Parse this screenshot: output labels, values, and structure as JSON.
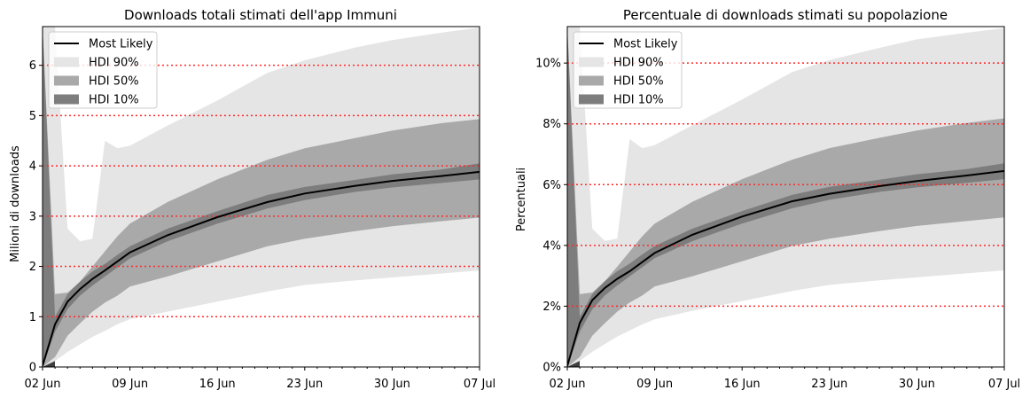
{
  "chart_data": [
    {
      "type": "area",
      "title": "Downloads totali stimati dell'app Immuni",
      "xlabel": "",
      "ylabel": "Milioni di downloads",
      "xlim": [
        "2020-06-02",
        "2020-07-07"
      ],
      "ylim": [
        0,
        6.77
      ],
      "x_ticks": [
        "02 Jun",
        "09 Jun",
        "16 Jun",
        "23 Jun",
        "30 Jun",
        "07 Jul"
      ],
      "y_ticks": [
        0,
        1,
        2,
        3,
        4,
        5,
        6
      ],
      "y_tick_labels": [
        "0",
        "1",
        "2",
        "3",
        "4",
        "5",
        "6"
      ],
      "hlines": [
        1,
        2,
        3,
        4,
        5,
        6
      ],
      "hline_color": "#ff2a2a",
      "grid": false,
      "legend": "top-left",
      "x_dates": [
        "2020-06-02",
        "2020-06-03",
        "2020-06-04",
        "2020-06-05",
        "2020-06-06",
        "2020-06-07",
        "2020-06-08",
        "2020-06-09",
        "2020-06-12",
        "2020-06-16",
        "2020-06-20",
        "2020-06-23",
        "2020-06-27",
        "2020-06-30",
        "2020-07-04",
        "2020-07-07"
      ],
      "series": [
        {
          "name": "Most Likely",
          "kind": "line",
          "color": "#000000",
          "values": [
            0.02,
            0.85,
            1.3,
            1.55,
            1.75,
            1.92,
            2.1,
            2.28,
            2.62,
            2.98,
            3.28,
            3.45,
            3.6,
            3.7,
            3.8,
            3.88
          ]
        },
        {
          "name": "HDI 90%",
          "kind": "band",
          "color": "#e5e5e5",
          "lower": [
            0,
            0.12,
            0.3,
            0.45,
            0.6,
            0.72,
            0.85,
            0.95,
            1.1,
            1.3,
            1.5,
            1.63,
            1.72,
            1.78,
            1.86,
            1.92
          ],
          "upper": [
            6.77,
            6.77,
            2.75,
            2.5,
            2.55,
            4.5,
            4.35,
            4.4,
            4.8,
            5.3,
            5.85,
            6.1,
            6.35,
            6.5,
            6.65,
            6.75
          ]
        },
        {
          "name": "HDI 50%",
          "kind": "band",
          "color": "#a9a9a9",
          "lower": [
            0,
            0.2,
            0.62,
            0.87,
            1.1,
            1.28,
            1.42,
            1.6,
            1.8,
            2.1,
            2.4,
            2.55,
            2.7,
            2.8,
            2.9,
            2.97
          ],
          "upper": [
            6.77,
            1.45,
            1.48,
            1.7,
            2.0,
            2.3,
            2.6,
            2.85,
            3.28,
            3.73,
            4.12,
            4.35,
            4.55,
            4.7,
            4.85,
            4.93
          ]
        },
        {
          "name": "HDI 10%",
          "kind": "band",
          "color": "#7d7d7d",
          "lower": [
            0,
            0.7,
            1.15,
            1.42,
            1.62,
            1.8,
            1.98,
            2.16,
            2.5,
            2.85,
            3.15,
            3.32,
            3.48,
            3.57,
            3.66,
            3.73
          ],
          "upper": [
            6.77,
            1.0,
            1.45,
            1.7,
            1.9,
            2.05,
            2.23,
            2.4,
            2.75,
            3.1,
            3.42,
            3.58,
            3.72,
            3.83,
            3.93,
            4.05
          ]
        }
      ]
    },
    {
      "type": "area",
      "title": "Percentuale di downloads stimati su popolazione",
      "xlabel": "",
      "ylabel": "Percentuali",
      "xlim": [
        "2020-06-02",
        "2020-07-07"
      ],
      "ylim": [
        0,
        11.2
      ],
      "x_ticks": [
        "02 Jun",
        "09 Jun",
        "16 Jun",
        "23 Jun",
        "30 Jun",
        "07 Jul"
      ],
      "y_ticks": [
        0,
        2,
        4,
        6,
        8,
        10
      ],
      "y_tick_labels": [
        "0%",
        "2%",
        "4%",
        "6%",
        "8%",
        "10%"
      ],
      "hlines": [
        2,
        4,
        6,
        8,
        10
      ],
      "hline_color": "#ff2a2a",
      "grid": false,
      "legend": "top-left",
      "x_dates": [
        "2020-06-02",
        "2020-06-03",
        "2020-06-04",
        "2020-06-05",
        "2020-06-06",
        "2020-06-07",
        "2020-06-08",
        "2020-06-09",
        "2020-06-12",
        "2020-06-16",
        "2020-06-20",
        "2020-06-23",
        "2020-06-27",
        "2020-06-30",
        "2020-07-04",
        "2020-07-07"
      ],
      "series": [
        {
          "name": "Most Likely",
          "kind": "line",
          "color": "#000000",
          "values": [
            0.03,
            1.45,
            2.2,
            2.6,
            2.9,
            3.15,
            3.45,
            3.75,
            4.35,
            4.95,
            5.45,
            5.7,
            5.95,
            6.12,
            6.3,
            6.45
          ]
        },
        {
          "name": "HDI 90%",
          "kind": "band",
          "color": "#e5e5e5",
          "lower": [
            0,
            0.2,
            0.5,
            0.75,
            1.0,
            1.2,
            1.4,
            1.57,
            1.85,
            2.17,
            2.5,
            2.7,
            2.85,
            2.95,
            3.08,
            3.18
          ],
          "upper": [
            11.2,
            11.2,
            4.55,
            4.15,
            4.22,
            7.5,
            7.2,
            7.3,
            7.95,
            8.8,
            9.7,
            10.1,
            10.5,
            10.78,
            11.0,
            11.15
          ]
        },
        {
          "name": "HDI 50%",
          "kind": "band",
          "color": "#a9a9a9",
          "lower": [
            0,
            0.33,
            1.03,
            1.44,
            1.82,
            2.12,
            2.35,
            2.65,
            2.98,
            3.48,
            3.98,
            4.22,
            4.47,
            4.64,
            4.8,
            4.92
          ],
          "upper": [
            11.2,
            2.4,
            2.45,
            2.82,
            3.3,
            3.8,
            4.3,
            4.72,
            5.43,
            6.18,
            6.82,
            7.2,
            7.54,
            7.78,
            8.03,
            8.18
          ]
        },
        {
          "name": "HDI 10%",
          "kind": "band",
          "color": "#7d7d7d",
          "lower": [
            0,
            1.16,
            1.9,
            2.35,
            2.68,
            2.98,
            3.28,
            3.58,
            4.14,
            4.72,
            5.22,
            5.5,
            5.76,
            5.91,
            6.06,
            6.18
          ],
          "upper": [
            11.2,
            1.65,
            2.4,
            2.82,
            3.15,
            3.4,
            3.7,
            3.98,
            4.55,
            5.13,
            5.66,
            5.93,
            6.16,
            6.34,
            6.51,
            6.7
          ]
        }
      ]
    }
  ]
}
